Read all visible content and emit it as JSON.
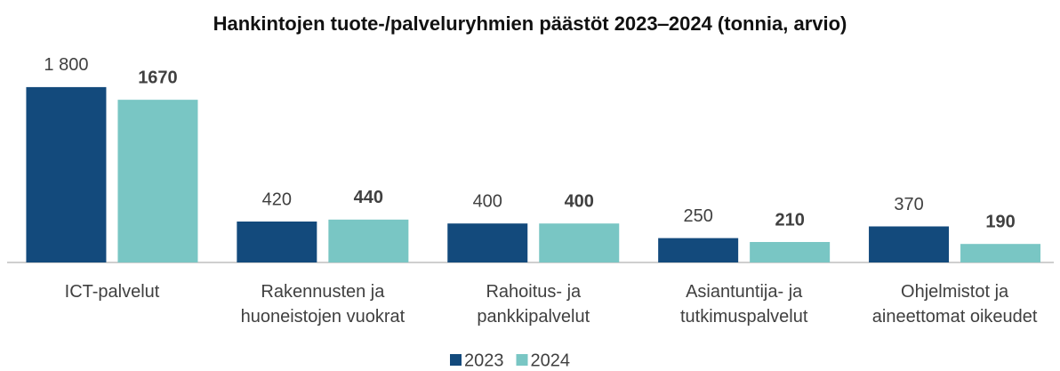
{
  "chart_data": {
    "type": "bar",
    "title": "Hankintojen tuote-/palveluryhmien päästöt 2023‒2024 (tonnia, arvio)",
    "categories": [
      "ICT-palvelut",
      "Rakennusten ja\nhuoneistojen vuokrat",
      "Rahoitus- ja\npankkipalvelut",
      "Asiantuntija- ja\ntutkimuspalvelut",
      "Ohjelmistot ja\naineettomat oikeudet"
    ],
    "series": [
      {
        "name": "2023",
        "color": "#134a7c",
        "values": [
          1800,
          420,
          400,
          250,
          370
        ],
        "value_labels": [
          "1 800",
          "420",
          "400",
          "250",
          "370"
        ]
      },
      {
        "name": "2024",
        "color": "#79c6c4",
        "values": [
          1670,
          440,
          400,
          210,
          190
        ]
      }
    ],
    "ylim": [
      0,
      2000
    ]
  }
}
